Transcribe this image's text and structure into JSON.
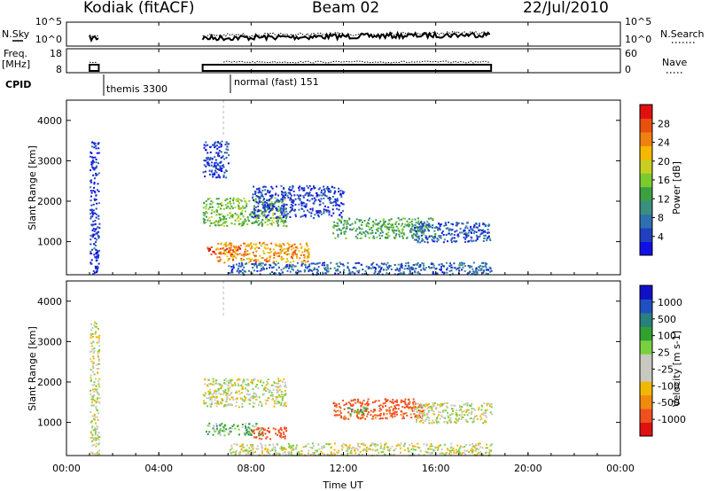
{
  "header": {
    "station": "Kodiak (fitACF)",
    "beam": "Beam 02",
    "date": "22/Jul/2010"
  },
  "left_labels": {
    "nsky": "N.Sky",
    "freq_line1": "Freq.",
    "freq_line2": "[MHz]",
    "cpid": "CPID"
  },
  "right_labels": {
    "nsearch": "N.Search",
    "nave": "Nave"
  },
  "annotations": {
    "cpid_1": "themis 3300",
    "cpid_2": "normal (fast) 151"
  },
  "colors": {
    "power_scale": [
      "#1010e6",
      "#2040c0",
      "#2e6fb0",
      "#3a8f80",
      "#3ca040",
      "#7acb30",
      "#c8cf20",
      "#f4b800",
      "#f08010",
      "#e85010",
      "#e01010"
    ],
    "velocity_scale": [
      "#e01010",
      "#f05020",
      "#f08a10",
      "#f0b800",
      "#c8c8c0",
      "#c8c8c0",
      "#78d040",
      "#30a030",
      "#2a7f7f",
      "#2050c0",
      "#1010c8"
    ]
  },
  "chart_data": [
    {
      "type": "line",
      "panel": "noise",
      "ylabel": "N.Sky",
      "right_label": "N.Search",
      "y_ticks": [
        "10^0",
        "10^5"
      ],
      "right_y_ticks": [
        "10^0",
        "10^5"
      ],
      "x_range_hours": [
        0,
        24
      ],
      "coverage_hours": [
        [
          1.0,
          1.4
        ],
        [
          5.9,
          18.4
        ]
      ]
    },
    {
      "type": "line",
      "panel": "frequency_nave",
      "ylabel": "Freq. [MHz]",
      "right_label": "Nave",
      "y_ticks": [
        "8",
        "18"
      ],
      "ylim": [
        8,
        18
      ],
      "right_y_ticks": [
        "0",
        "60"
      ],
      "right_ylim": [
        0,
        60
      ],
      "coverage_hours": [
        [
          1.0,
          1.4
        ],
        [
          5.9,
          18.4
        ]
      ]
    },
    {
      "type": "heatmap",
      "panel": "power",
      "ylabel": "Slant Range [km]",
      "y_ticks": [
        "1000",
        "2000",
        "3000",
        "4000"
      ],
      "ylim": [
        180,
        4500
      ],
      "colorbar_label": "Power [dB]",
      "colorbar_ticks": [
        "4",
        "8",
        "12",
        "16",
        "20",
        "24",
        "28"
      ],
      "colorbar_range": [
        0,
        30
      ],
      "regions": [
        {
          "t0": 1.0,
          "t1": 1.4,
          "r0": 200,
          "r1": 3500,
          "level": 3
        },
        {
          "t0": 5.9,
          "t1": 9.5,
          "r0": 1400,
          "r1": 2100,
          "level": 14
        },
        {
          "t0": 6.5,
          "t1": 10.5,
          "r0": 500,
          "r1": 1000,
          "level": 22
        },
        {
          "t0": 6.0,
          "t1": 7.5,
          "r0": 700,
          "r1": 900,
          "level": 27
        },
        {
          "t0": 7.0,
          "t1": 18.4,
          "r0": 200,
          "r1": 500,
          "level": 6
        },
        {
          "t0": 11.5,
          "t1": 16.0,
          "r0": 1100,
          "r1": 1600,
          "level": 12
        },
        {
          "t0": 15.0,
          "t1": 18.4,
          "r0": 1000,
          "r1": 1500,
          "level": 5
        },
        {
          "t0": 8.0,
          "t1": 12.0,
          "r0": 1600,
          "r1": 2400,
          "level": 4
        },
        {
          "t0": 5.9,
          "t1": 7.0,
          "r0": 2600,
          "r1": 3500,
          "level": 4
        }
      ]
    },
    {
      "type": "heatmap",
      "panel": "velocity",
      "xlabel": "Time UT",
      "ylabel": "Slant Range [km]",
      "y_ticks": [
        "1000",
        "2000",
        "3000",
        "4000"
      ],
      "ylim": [
        180,
        4500
      ],
      "x_ticks": [
        "00:00",
        "04:00",
        "08:00",
        "12:00",
        "16:00",
        "20:00",
        "00:00"
      ],
      "x_range_hours": [
        0,
        24
      ],
      "colorbar_label": "Velocity [m s-1]",
      "colorbar_ticks": [
        "-1000",
        "-500",
        "-100",
        "-25",
        "25",
        "100",
        "500",
        "1000"
      ],
      "regions": [
        {
          "t0": 1.0,
          "t1": 1.4,
          "r0": 200,
          "r1": 3500,
          "level": 0
        },
        {
          "t0": 5.9,
          "t1": 9.5,
          "r0": 1400,
          "r1": 2100,
          "level": 0
        },
        {
          "t0": 6.0,
          "t1": 8.5,
          "r0": 700,
          "r1": 1000,
          "level": 60
        },
        {
          "t0": 8.0,
          "t1": 9.5,
          "r0": 600,
          "r1": 900,
          "level": -200
        },
        {
          "t0": 11.5,
          "t1": 15.5,
          "r0": 1100,
          "r1": 1600,
          "level": -150
        },
        {
          "t0": 12.0,
          "t1": 13.0,
          "r0": 1200,
          "r1": 1400,
          "level": 60
        },
        {
          "t0": 15.0,
          "t1": 18.4,
          "r0": 1000,
          "r1": 1500,
          "level": 0
        },
        {
          "t0": 7.0,
          "t1": 18.4,
          "r0": 200,
          "r1": 500,
          "level": 0
        }
      ]
    }
  ]
}
